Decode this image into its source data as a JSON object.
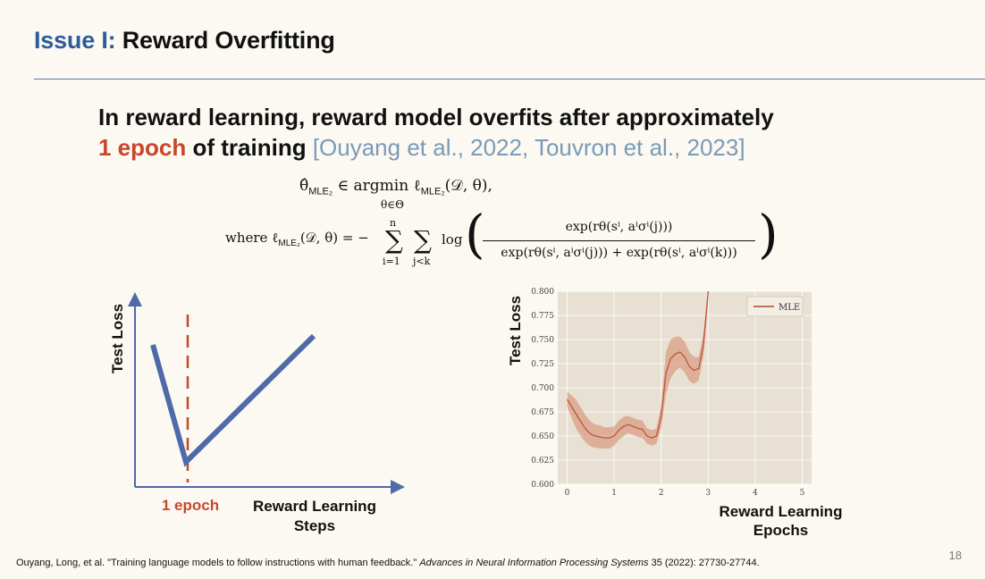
{
  "slide": {
    "title_prefix": "Issue I:",
    "title_main": "Reward Overfitting",
    "headline_part1": "In reward learning, reward model overfits after approximately",
    "headline_highlight": "1 epoch",
    "headline_part2": "of training",
    "headline_citation": "[Ouyang et al., 2022, Touvron et al., 2023]",
    "page_number": "18"
  },
  "equations": {
    "eq1_lhs": "θ̂",
    "eq1_sub": "MLE₂",
    "eq1_mid": "∈ argmin ℓ",
    "eq1_rhs": "(𝒟, θ),",
    "eq1_under": "θ∈Θ",
    "eq2_where": "where ℓ",
    "eq2_def": "(𝒟, θ) = −",
    "sum_top": "n",
    "sum_bottom_i": "i=1",
    "sum_bottom_jk": "j<k",
    "log": "log",
    "numerator": "exp(rθ(sⁱ, aⁱσⁱ(j)))",
    "denominator": "exp(rθ(sⁱ, aⁱσⁱ(j))) + exp(rθ(sⁱ, aⁱσⁱ(k)))"
  },
  "left_chart": {
    "y_label": "Test Loss",
    "x_marker_label": "1 epoch",
    "x_label": "Reward Learning Steps",
    "line_color": "#4f6aa8",
    "marker_color": "#c9462a"
  },
  "chart_data": {
    "type": "line",
    "title": "",
    "xlabel": "Reward Learning Epochs",
    "ylabel": "Test Loss",
    "xlim": [
      -0.2,
      5.2
    ],
    "ylim": [
      0.6,
      0.8
    ],
    "x_ticks": [
      "0",
      "1",
      "2",
      "3",
      "4",
      "5"
    ],
    "y_ticks": [
      "0.600",
      "0.625",
      "0.650",
      "0.675",
      "0.700",
      "0.725",
      "0.750",
      "0.775",
      "0.800"
    ],
    "legend": "top-right",
    "grid": true,
    "series": [
      {
        "name": "MLE",
        "color": "#c0533a",
        "x": [
          0,
          0.1,
          0.2,
          0.3,
          0.4,
          0.5,
          0.6,
          0.7,
          0.8,
          0.9,
          1.0,
          1.1,
          1.2,
          1.3,
          1.4,
          1.5,
          1.6,
          1.7,
          1.8,
          1.9,
          2.0,
          2.1,
          2.2,
          2.3,
          2.4,
          2.5,
          2.6,
          2.7,
          2.8,
          2.9,
          3.0
        ],
        "y": [
          0.688,
          0.68,
          0.672,
          0.664,
          0.657,
          0.652,
          0.65,
          0.649,
          0.648,
          0.648,
          0.65,
          0.656,
          0.66,
          0.662,
          0.66,
          0.658,
          0.657,
          0.65,
          0.648,
          0.65,
          0.67,
          0.715,
          0.73,
          0.735,
          0.737,
          0.732,
          0.722,
          0.718,
          0.72,
          0.745,
          0.8
        ],
        "band": [
          0.008,
          0.012,
          0.015,
          0.015,
          0.014,
          0.013,
          0.012,
          0.012,
          0.011,
          0.011,
          0.01,
          0.01,
          0.01,
          0.009,
          0.009,
          0.009,
          0.009,
          0.008,
          0.008,
          0.008,
          0.012,
          0.022,
          0.02,
          0.018,
          0.016,
          0.016,
          0.015,
          0.014,
          0.012,
          0.012,
          0.01
        ]
      }
    ]
  },
  "footer": {
    "authors": "Ouyang, Long, et al. \"Training language models to follow instructions with human feedback.\"",
    "venue": "Advances in Neural Information Processing Systems",
    "details": "35 (2022): 27730-27744."
  }
}
